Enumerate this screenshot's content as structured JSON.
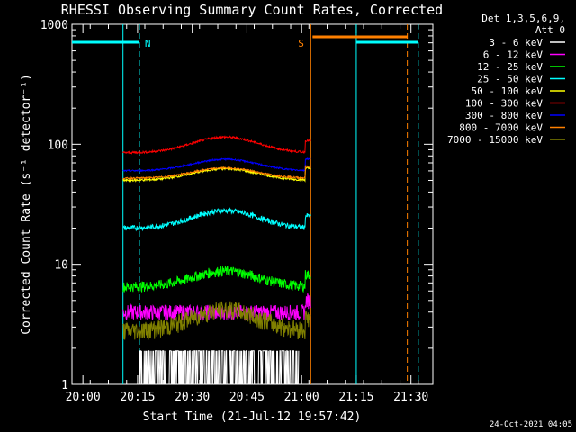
{
  "chart_data": {
    "type": "line",
    "title": "RHESSI Observing Summary Count Rates, Corrected",
    "xlabel": "Start Time (21-Jul-12 19:57:42)",
    "ylabel": "Corrected Count Rate (s⁻¹ detector⁻¹)",
    "y_scale": "log",
    "ylim": [
      1,
      1000
    ],
    "xlim_minutes": [
      -3,
      96
    ],
    "x_ticks": [
      {
        "label": "20:00",
        "minute": 0
      },
      {
        "label": "20:15",
        "minute": 15
      },
      {
        "label": "20:30",
        "minute": 30
      },
      {
        "label": "20:45",
        "minute": 45
      },
      {
        "label": "21:00",
        "minute": 60
      },
      {
        "label": "21:15",
        "minute": 75
      },
      {
        "label": "21:30",
        "minute": 90
      }
    ],
    "y_ticks": [
      {
        "label": "1",
        "value": 1
      },
      {
        "label": "10",
        "value": 10
      },
      {
        "label": "100",
        "value": 100
      },
      {
        "label": "1000",
        "value": 1000
      }
    ],
    "legend_header": [
      "Det 1,3,5,6,9,",
      "Att 0"
    ],
    "legend_position": "right",
    "series": [
      {
        "name": "3 - 6 keV",
        "color": "#ffffff",
        "t0": 15.5,
        "t1": 59.2,
        "base": 1.4,
        "bump": 0.2,
        "noise": 0.3
      },
      {
        "name": "6 - 12 keV",
        "color": "#ff00ff",
        "t0": 11,
        "t1": 62.5,
        "base": 4.0,
        "bump": 0.0,
        "noise": 0.15
      },
      {
        "name": "12 - 25 keV",
        "color": "#00ff00",
        "t0": 11,
        "t1": 62.5,
        "base": 6.5,
        "bump": 0.35,
        "noise": 0.1
      },
      {
        "name": "25 - 50 keV",
        "color": "#00ffff",
        "t0": 11,
        "t1": 62.5,
        "base": 20,
        "bump": 0.4,
        "noise": 0.05
      },
      {
        "name": "50 - 100 keV",
        "color": "#ffff00",
        "t0": 11,
        "t1": 62.5,
        "base": 50,
        "bump": 0.25,
        "noise": 0.02
      },
      {
        "name": "100 - 300 keV",
        "color": "#ff0000",
        "t0": 11,
        "t1": 62.5,
        "base": 85,
        "bump": 0.35,
        "noise": 0.02
      },
      {
        "name": "300 - 800 keV",
        "color": "#0000ff",
        "t0": 11,
        "t1": 62.5,
        "base": 60,
        "bump": 0.25,
        "noise": 0.015
      },
      {
        "name": "800 - 7000 keV",
        "color": "#ff8000",
        "t0": 11,
        "t1": 62.5,
        "base": 52,
        "bump": 0.22,
        "noise": 0.015
      },
      {
        "name": "7000 - 15000 keV",
        "color": "#808000",
        "t0": 11,
        "t1": 62.5,
        "base": 2.8,
        "bump": 0.5,
        "noise": 0.18
      }
    ],
    "markers": [
      {
        "label": "N",
        "color": "#00ffff",
        "minute": 15.5,
        "bar_start": -3,
        "bar_end": 15.5
      },
      {
        "label": "S",
        "color": "#ff8000",
        "minute": 62.5,
        "bar_start": 63,
        "bar_end": 89
      },
      {
        "label": "",
        "color": "#00ffff",
        "minute": 75,
        "bar_start": 75,
        "bar_end": 92
      }
    ],
    "footer": "24-Oct-2021 04:05"
  }
}
